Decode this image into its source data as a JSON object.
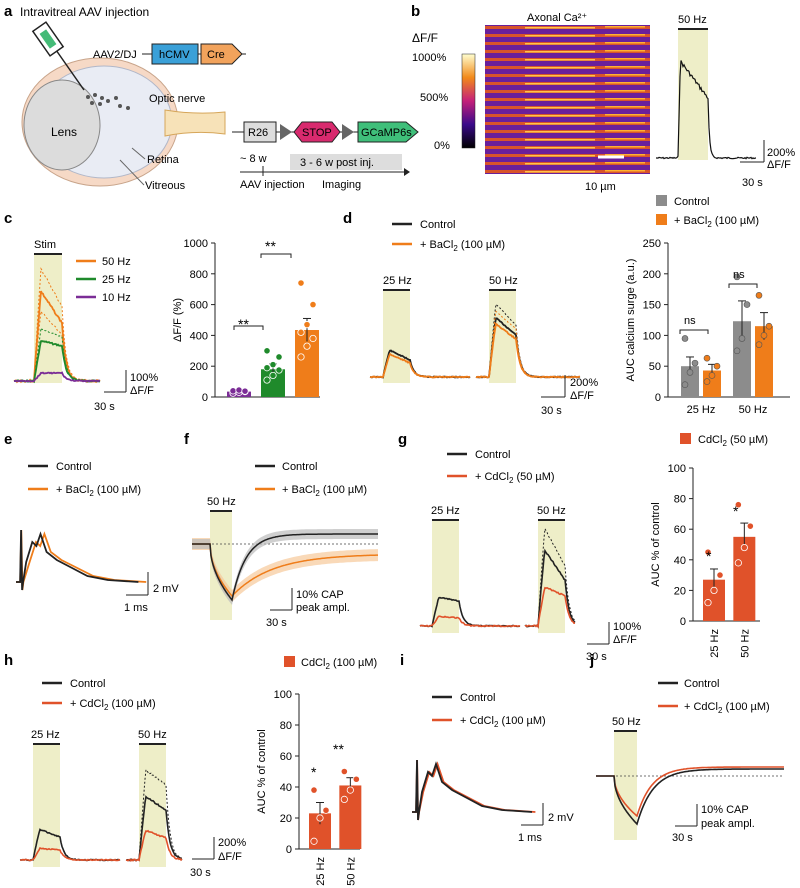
{
  "colors": {
    "orange": "#ef7d1a",
    "green": "#1f8a2b",
    "purple": "#7b2d96",
    "black": "#222222",
    "gray": "#8c8c8c",
    "stim": "#eeeec8",
    "red_orange": "#e0522a",
    "hcmv": "#3aa0d8",
    "cre": "#f2a35c",
    "stop": "#d82a6e",
    "gcamp": "#3fbf7a"
  },
  "panel_a": {
    "letter": "a",
    "title": "Intravitreal AAV injection",
    "vector": "AAV2/DJ",
    "promoter": "hCMV",
    "cre": "Cre",
    "optic_nerve": "Optic nerve",
    "lens": "Lens",
    "retina": "Retina",
    "vitreous": "Vitreous",
    "r26": "R26",
    "stop": "STOP",
    "gcamp": "GCaMP6s",
    "age": "~ 8 w",
    "window": "3 - 6 w post inj.",
    "injection": "AAV injection",
    "imaging": "Imaging"
  },
  "panel_b": {
    "letter": "b",
    "image_title": "Axonal Ca²⁺",
    "cb_label": "ΔF/F",
    "cb_ticks": [
      "1000%",
      "500%",
      "0%"
    ],
    "scale": "10 µm",
    "stim": "50 Hz",
    "sb_y": "200%",
    "sb_unit": "ΔF/F",
    "sb_x": "30 s"
  },
  "panel_c": {
    "letter": "c",
    "stim": "Stim",
    "legend": [
      "50 Hz",
      "25 Hz",
      "10 Hz"
    ],
    "sb_y": "100%",
    "sb_unit": "ΔF/F",
    "sb_x": "30 s",
    "sig1": "**",
    "sig2": "**"
  },
  "panel_d": {
    "letter": "d",
    "legend_ctrl": "Control",
    "legend_drug": "+ BaCl",
    "legend_drug_sub": "2",
    "legend_drug_conc": " (100 µM)",
    "stim1": "25 Hz",
    "stim2": "50 Hz",
    "sb_y": "200%",
    "sb_unit": "ΔF/F",
    "sb_x": "30 s",
    "bar_legend_ctrl": "Control",
    "bar_legend_drug": "+ BaCl",
    "bar_legend_sub": "2",
    "bar_legend_conc": " (100 µM)",
    "ns1": "ns",
    "ns2": "ns"
  },
  "panel_e": {
    "letter": "e",
    "legend_ctrl": "Control",
    "legend_drug": "+ BaCl",
    "legend_sub": "2",
    "legend_conc": " (100 µM)",
    "sb_y": "2 mV",
    "sb_x": "1 ms"
  },
  "panel_f": {
    "letter": "f",
    "legend_ctrl": "Control",
    "legend_drug": "+ BaCl",
    "legend_sub": "2",
    "legend_conc": " (100 µM)",
    "stim": "50 Hz",
    "sb_y1": "10% CAP",
    "sb_y2": "peak ampl.",
    "sb_x": "30 s"
  },
  "panel_g": {
    "letter": "g",
    "legend_ctrl": "Control",
    "legend_drug": "+ CdCl",
    "legend_sub": "2",
    "legend_conc": " (50 µM)",
    "stim1": "25 Hz",
    "stim2": "50 Hz",
    "sb_y": "100%",
    "sb_unit": "ΔF/F",
    "sb_x": "30 s",
    "bar_legend": "CdCl",
    "bar_legend_sub": "2",
    "bar_legend_conc": " (50 µM)",
    "star1": "*",
    "star2": "*"
  },
  "panel_h": {
    "letter": "h",
    "legend_ctrl": "Control",
    "legend_drug": "+ CdCl",
    "legend_sub": "2",
    "legend_conc": " (100 µM)",
    "stim1": "25 Hz",
    "stim2": "50 Hz",
    "sb_y": "200%",
    "sb_unit": "ΔF/F",
    "sb_x": "30 s",
    "bar_legend": "CdCl",
    "bar_legend_sub": "2",
    "bar_legend_conc": " (100 µM)",
    "star1": "*",
    "star2": "**"
  },
  "panel_i": {
    "letter": "i",
    "legend_ctrl": "Control",
    "legend_drug": "+ CdCl",
    "legend_sub": "2",
    "legend_conc": " (100 µM)",
    "sb_y": "2 mV",
    "sb_x": "1 ms"
  },
  "panel_j": {
    "letter": "j",
    "legend_ctrl": "Control",
    "legend_drug": "+ CdCl",
    "legend_sub": "2",
    "legend_conc": " (100 µM)",
    "stim": "50 Hz",
    "sb_y1": "10% CAP",
    "sb_y2": "peak ampl.",
    "sb_x": "30 s"
  },
  "chart_data": [
    {
      "id": "c",
      "type": "bar",
      "title": "",
      "ylabel": "ΔF/F (%)",
      "ylim": [
        0,
        1000
      ],
      "yticks": [
        0,
        200,
        400,
        600,
        800,
        1000
      ],
      "categories": [
        "10 Hz",
        "25 Hz",
        "50 Hz"
      ],
      "values": [
        35,
        180,
        435
      ],
      "errors": [
        8,
        35,
        75
      ],
      "colors": [
        "#7b2d96",
        "#1f8a2b",
        "#ef7d1a"
      ],
      "points": [
        [
          25,
          30,
          35,
          40,
          45,
          38
        ],
        [
          110,
          140,
          175,
          190,
          210,
          260,
          300
        ],
        [
          260,
          330,
          380,
          420,
          470,
          600,
          740
        ]
      ]
    },
    {
      "id": "d",
      "type": "bar",
      "ylabel": "AUC calcium surge (a.u.)",
      "ylim": [
        0,
        250
      ],
      "yticks": [
        0,
        50,
        100,
        150,
        200,
        250
      ],
      "categories": [
        "25 Hz",
        "50 Hz"
      ],
      "series": [
        {
          "name": "Control",
          "values": [
            50,
            123
          ],
          "errors": [
            15,
            33
          ],
          "color": "#8c8c8c",
          "points": [
            [
              20,
              40,
              55,
              95
            ],
            [
              75,
              95,
              150,
              195
            ]
          ]
        },
        {
          "name": "+ BaCl2 (100 µM)",
          "values": [
            43,
            115
          ],
          "errors": [
            10,
            22
          ],
          "color": "#ef7d1a",
          "points": [
            [
              25,
              35,
              50,
              63
            ],
            [
              85,
              100,
              115,
              165
            ]
          ]
        }
      ]
    },
    {
      "id": "g",
      "type": "bar",
      "ylabel": "AUC % of control",
      "ylim": [
        0,
        100
      ],
      "yticks": [
        0,
        20,
        40,
        60,
        80,
        100
      ],
      "categories": [
        "25 Hz",
        "50 Hz"
      ],
      "values": [
        27,
        55
      ],
      "errors": [
        7,
        9
      ],
      "colors": [
        "#e0522a",
        "#e0522a"
      ],
      "points": [
        [
          12,
          20,
          30,
          45
        ],
        [
          38,
          48,
          62,
          76
        ]
      ]
    },
    {
      "id": "h",
      "type": "bar",
      "ylabel": "AUC % of control",
      "ylim": [
        0,
        100
      ],
      "yticks": [
        0,
        20,
        40,
        60,
        80,
        100
      ],
      "categories": [
        "25 Hz",
        "50 Hz"
      ],
      "values": [
        23,
        41
      ],
      "errors": [
        7,
        5
      ],
      "colors": [
        "#e0522a",
        "#e0522a"
      ],
      "points": [
        [
          5,
          20,
          25,
          38
        ],
        [
          32,
          38,
          45,
          50
        ]
      ]
    }
  ]
}
